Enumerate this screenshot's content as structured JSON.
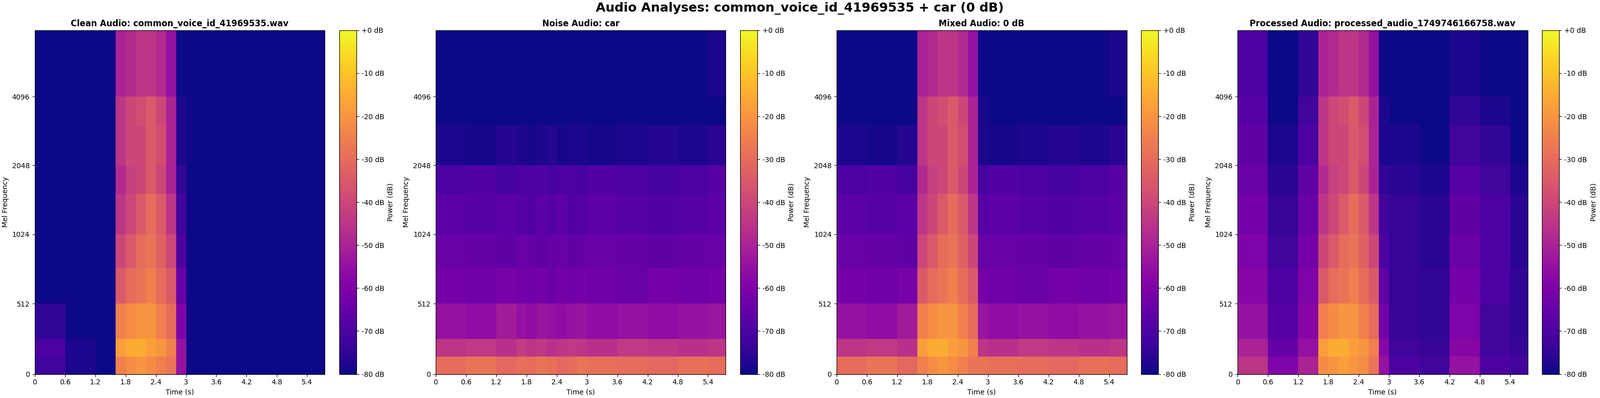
{
  "title": "Audio Analyses: common_voice_id_41969535 + car (0 dB)",
  "chart_data": [
    {
      "type": "heatmap",
      "title": "Clean Audio: common_voice_id_41969535.wav",
      "x_label": "Time (s)",
      "y_label": "Mel Frequency",
      "log": "y",
      "xlim": [
        0,
        5.75
      ],
      "ylim": [
        0,
        8000
      ],
      "xticks": [
        0,
        0.6,
        1.2,
        1.8,
        2.4,
        3,
        3.6,
        4.2,
        4.8,
        5.4
      ],
      "yticks": [
        0,
        512,
        1024,
        2048,
        4096
      ],
      "x_edges": [
        0,
        0.6,
        1.2,
        1.6,
        1.8,
        2.0,
        2.2,
        2.4,
        2.6,
        2.8,
        3.0,
        3.6,
        4.2,
        4.8,
        5.4,
        5.75
      ],
      "y_edges": [
        0,
        128,
        256,
        512,
        768,
        1024,
        1536,
        2048,
        3072,
        4096,
        8000
      ],
      "cells": [
        [
          -72,
          -78,
          -80,
          -25,
          -22,
          -20,
          -22,
          -25,
          -28,
          -55,
          -80,
          -80,
          -80,
          -80,
          -80
        ],
        [
          -70,
          -78,
          -80,
          -18,
          -15,
          -15,
          -18,
          -20,
          -25,
          -55,
          -80,
          -80,
          -80,
          -80,
          -80
        ],
        [
          -75,
          -80,
          -80,
          -25,
          -22,
          -20,
          -20,
          -25,
          -30,
          -60,
          -80,
          -80,
          -80,
          -80,
          -80
        ],
        [
          -80,
          -80,
          -80,
          -35,
          -30,
          -28,
          -25,
          -30,
          -35,
          -65,
          -80,
          -80,
          -80,
          -80,
          -80
        ],
        [
          -80,
          -80,
          -80,
          -40,
          -35,
          -30,
          -28,
          -33,
          -40,
          -70,
          -80,
          -80,
          -80,
          -80,
          -80
        ],
        [
          -80,
          -80,
          -80,
          -45,
          -40,
          -35,
          -30,
          -35,
          -45,
          -72,
          -80,
          -80,
          -80,
          -80,
          -80
        ],
        [
          -80,
          -80,
          -80,
          -48,
          -42,
          -40,
          -35,
          -40,
          -50,
          -75,
          -80,
          -80,
          -80,
          -80,
          -80
        ],
        [
          -80,
          -80,
          -80,
          -45,
          -40,
          -40,
          -35,
          -38,
          -50,
          -78,
          -80,
          -80,
          -80,
          -80,
          -80
        ],
        [
          -80,
          -80,
          -80,
          -45,
          -40,
          -38,
          -35,
          -40,
          -50,
          -78,
          -80,
          -80,
          -80,
          -80,
          -80
        ],
        [
          -80,
          -80,
          -80,
          -50,
          -48,
          -45,
          -45,
          -48,
          -55,
          -80,
          -80,
          -80,
          -80,
          -80,
          -80
        ]
      ],
      "colorbar": {
        "label": "Power (dB)",
        "range": [
          -80,
          0
        ],
        "ticks": [
          {
            "value": 0,
            "label": "+0 dB"
          },
          {
            "value": -10,
            "label": "-10 dB"
          },
          {
            "value": -20,
            "label": "-20 dB"
          },
          {
            "value": -30,
            "label": "-30 dB"
          },
          {
            "value": -40,
            "label": "-40 dB"
          },
          {
            "value": -50,
            "label": "-50 dB"
          },
          {
            "value": -60,
            "label": "-60 dB"
          },
          {
            "value": -70,
            "label": "-70 dB"
          },
          {
            "value": -80,
            "label": "-80 dB"
          }
        ]
      }
    },
    {
      "type": "heatmap",
      "title": "Noise Audio: car",
      "x_label": "Time (s)",
      "y_label": "Mel Frequency",
      "log": "y",
      "xlim": [
        0,
        5.75
      ],
      "ylim": [
        0,
        8000
      ],
      "xticks": [
        0,
        0.6,
        1.2,
        1.8,
        2.4,
        3,
        3.6,
        4.2,
        4.8,
        5.4
      ],
      "yticks": [
        0,
        512,
        1024,
        2048,
        4096
      ],
      "x_edges": [
        0,
        0.6,
        1.2,
        1.6,
        1.8,
        2.0,
        2.2,
        2.4,
        2.6,
        2.8,
        3.0,
        3.6,
        4.2,
        4.8,
        5.4,
        5.75
      ],
      "y_edges": [
        0,
        128,
        256,
        512,
        768,
        1024,
        1536,
        2048,
        3072,
        4096,
        8000
      ],
      "cells": [
        [
          -30,
          -28,
          -31,
          -29,
          -30,
          -28,
          -29,
          -31,
          -30,
          -28,
          -29,
          -30,
          -31,
          -29,
          -30
        ],
        [
          -45,
          -44,
          -46,
          -43,
          -45,
          -44,
          -46,
          -45,
          -44,
          -45,
          -46,
          -44,
          -45,
          -46,
          -45
        ],
        [
          -55,
          -56,
          -52,
          -55,
          -56,
          -54,
          -55,
          -56,
          -55,
          -54,
          -56,
          -55,
          -56,
          -55,
          -54
        ],
        [
          -62,
          -63,
          -61,
          -62,
          -63,
          -62,
          -64,
          -62,
          -63,
          -62,
          -63,
          -64,
          -62,
          -63,
          -62
        ],
        [
          -64,
          -65,
          -66,
          -64,
          -65,
          -66,
          -65,
          -64,
          -66,
          -65,
          -64,
          -65,
          -66,
          -65,
          -64
        ],
        [
          -67,
          -68,
          -67,
          -68,
          -69,
          -67,
          -68,
          -67,
          -69,
          -68,
          -67,
          -68,
          -69,
          -68,
          -67
        ],
        [
          -70,
          -69,
          -71,
          -70,
          -70,
          -69,
          -71,
          -70,
          -70,
          -71,
          -69,
          -70,
          -71,
          -70,
          -68
        ],
        [
          -78,
          -79,
          -77,
          -78,
          -79,
          -78,
          -77,
          -79,
          -78,
          -78,
          -79,
          -78,
          -77,
          -78,
          -76
        ],
        [
          -80,
          -80,
          -80,
          -80,
          -80,
          -80,
          -80,
          -80,
          -80,
          -80,
          -80,
          -80,
          -80,
          -80,
          -80
        ],
        [
          -80,
          -80,
          -80,
          -80,
          -80,
          -80,
          -80,
          -80,
          -80,
          -80,
          -80,
          -80,
          -80,
          -80,
          -78
        ]
      ],
      "colorbar": {
        "label": "Power (dB)",
        "range": [
          -80,
          0
        ],
        "ticks": [
          {
            "value": 0,
            "label": "+0 dB"
          },
          {
            "value": -10,
            "label": "-10 dB"
          },
          {
            "value": -20,
            "label": "-20 dB"
          },
          {
            "value": -30,
            "label": "-30 dB"
          },
          {
            "value": -40,
            "label": "-40 dB"
          },
          {
            "value": -50,
            "label": "-50 dB"
          },
          {
            "value": -60,
            "label": "-60 dB"
          },
          {
            "value": -70,
            "label": "-70 dB"
          },
          {
            "value": -80,
            "label": "-80 dB"
          }
        ]
      }
    },
    {
      "type": "heatmap",
      "title": "Mixed Audio: 0 dB",
      "x_label": "Time (s)",
      "y_label": "Mel Frequency",
      "log": "y",
      "xlim": [
        0,
        5.75
      ],
      "ylim": [
        0,
        8000
      ],
      "xticks": [
        0,
        0.6,
        1.2,
        1.8,
        2.4,
        3,
        3.6,
        4.2,
        4.8,
        5.4
      ],
      "yticks": [
        0,
        512,
        1024,
        2048,
        4096
      ],
      "x_edges": [
        0,
        0.6,
        1.2,
        1.6,
        1.8,
        2.0,
        2.2,
        2.4,
        2.6,
        2.8,
        3.0,
        3.6,
        4.2,
        4.8,
        5.4,
        5.75
      ],
      "y_edges": [
        0,
        128,
        256,
        512,
        768,
        1024,
        1536,
        2048,
        3072,
        4096,
        8000
      ],
      "cells": [
        [
          -30,
          -28,
          -31,
          -25,
          -22,
          -20,
          -22,
          -25,
          -28,
          -28,
          -29,
          -30,
          -31,
          -29,
          -30
        ],
        [
          -45,
          -44,
          -46,
          -18,
          -15,
          -15,
          -18,
          -20,
          -25,
          -45,
          -46,
          -44,
          -45,
          -46,
          -45
        ],
        [
          -55,
          -56,
          -52,
          -25,
          -22,
          -20,
          -20,
          -25,
          -30,
          -54,
          -56,
          -55,
          -56,
          -55,
          -54
        ],
        [
          -62,
          -63,
          -61,
          -35,
          -30,
          -28,
          -25,
          -30,
          -35,
          -62,
          -63,
          -64,
          -62,
          -63,
          -62
        ],
        [
          -64,
          -65,
          -66,
          -40,
          -35,
          -30,
          -28,
          -33,
          -40,
          -65,
          -64,
          -65,
          -66,
          -65,
          -64
        ],
        [
          -67,
          -68,
          -67,
          -45,
          -40,
          -35,
          -30,
          -35,
          -45,
          -68,
          -67,
          -68,
          -69,
          -68,
          -67
        ],
        [
          -70,
          -69,
          -71,
          -48,
          -42,
          -40,
          -35,
          -40,
          -50,
          -71,
          -69,
          -70,
          -71,
          -70,
          -68
        ],
        [
          -78,
          -79,
          -77,
          -45,
          -40,
          -40,
          -35,
          -38,
          -50,
          -78,
          -79,
          -78,
          -77,
          -78,
          -76
        ],
        [
          -80,
          -80,
          -80,
          -45,
          -40,
          -38,
          -35,
          -40,
          -50,
          -78,
          -80,
          -80,
          -80,
          -80,
          -80
        ],
        [
          -80,
          -80,
          -80,
          -50,
          -48,
          -45,
          -45,
          -48,
          -55,
          -80,
          -80,
          -80,
          -80,
          -80,
          -78
        ]
      ],
      "colorbar": {
        "label": "Power (dB)",
        "range": [
          -80,
          0
        ],
        "ticks": [
          {
            "value": 0,
            "label": "+0 dB"
          },
          {
            "value": -10,
            "label": "-10 dB"
          },
          {
            "value": -20,
            "label": "-20 dB"
          },
          {
            "value": -30,
            "label": "-30 dB"
          },
          {
            "value": -40,
            "label": "-40 dB"
          },
          {
            "value": -50,
            "label": "-50 dB"
          },
          {
            "value": -60,
            "label": "-60 dB"
          },
          {
            "value": -70,
            "label": "-70 dB"
          },
          {
            "value": -80,
            "label": "-80 dB"
          }
        ]
      }
    },
    {
      "type": "heatmap",
      "title": "Processed Audio: processed_audio_1749746166758.wav",
      "x_label": "Time (s)",
      "y_label": "Mel Frequency",
      "log": "y",
      "xlim": [
        0,
        5.75
      ],
      "ylim": [
        0,
        8000
      ],
      "xticks": [
        0,
        0.6,
        1.2,
        1.8,
        2.4,
        3,
        3.6,
        4.2,
        4.8,
        5.4
      ],
      "yticks": [
        0,
        512,
        1024,
        2048,
        4096
      ],
      "x_edges": [
        0,
        0.6,
        1.2,
        1.6,
        1.8,
        2.0,
        2.2,
        2.4,
        2.6,
        2.8,
        3.0,
        3.6,
        4.2,
        4.8,
        5.4,
        5.75
      ],
      "y_edges": [
        0,
        128,
        256,
        512,
        768,
        1024,
        1536,
        2048,
        3072,
        4096,
        8000
      ],
      "cells": [
        [
          -45,
          -60,
          -50,
          -22,
          -20,
          -18,
          -20,
          -22,
          -28,
          -55,
          -70,
          -72,
          -55,
          -70,
          -72
        ],
        [
          -50,
          -65,
          -55,
          -18,
          -15,
          -15,
          -18,
          -20,
          -25,
          -58,
          -72,
          -74,
          -58,
          -72,
          -74
        ],
        [
          -55,
          -68,
          -58,
          -25,
          -22,
          -20,
          -20,
          -25,
          -30,
          -62,
          -74,
          -75,
          -60,
          -72,
          -75
        ],
        [
          -58,
          -70,
          -60,
          -35,
          -30,
          -28,
          -25,
          -30,
          -35,
          -66,
          -74,
          -75,
          -62,
          -70,
          -75
        ],
        [
          -60,
          -72,
          -62,
          -40,
          -35,
          -30,
          -28,
          -33,
          -40,
          -70,
          -74,
          -76,
          -64,
          -70,
          -76
        ],
        [
          -62,
          -74,
          -64,
          -45,
          -40,
          -35,
          -30,
          -35,
          -45,
          -72,
          -74,
          -76,
          -66,
          -70,
          -76
        ],
        [
          -64,
          -76,
          -66,
          -48,
          -42,
          -40,
          -35,
          -40,
          -50,
          -75,
          -76,
          -78,
          -68,
          -72,
          -78
        ],
        [
          -66,
          -78,
          -70,
          -45,
          -40,
          -40,
          -35,
          -38,
          -50,
          -78,
          -78,
          -80,
          -72,
          -75,
          -80
        ],
        [
          -68,
          -80,
          -72,
          -45,
          -40,
          -38,
          -35,
          -40,
          -50,
          -78,
          -80,
          -80,
          -75,
          -78,
          -80
        ],
        [
          -70,
          -80,
          -75,
          -50,
          -48,
          -45,
          -45,
          -48,
          -55,
          -80,
          -80,
          -80,
          -78,
          -80,
          -80
        ]
      ],
      "colorbar": {
        "label": "Power (dB)",
        "range": [
          -80,
          0
        ],
        "ticks": [
          {
            "value": 0,
            "label": "+0 dB"
          },
          {
            "value": -10,
            "label": "-10 dB"
          },
          {
            "value": -20,
            "label": "-20 dB"
          },
          {
            "value": -30,
            "label": "-30 dB"
          },
          {
            "value": -40,
            "label": "-40 dB"
          },
          {
            "value": -50,
            "label": "-50 dB"
          },
          {
            "value": -60,
            "label": "-60 dB"
          },
          {
            "value": -70,
            "label": "-70 dB"
          },
          {
            "value": -80,
            "label": "-80 dB"
          }
        ]
      }
    }
  ]
}
